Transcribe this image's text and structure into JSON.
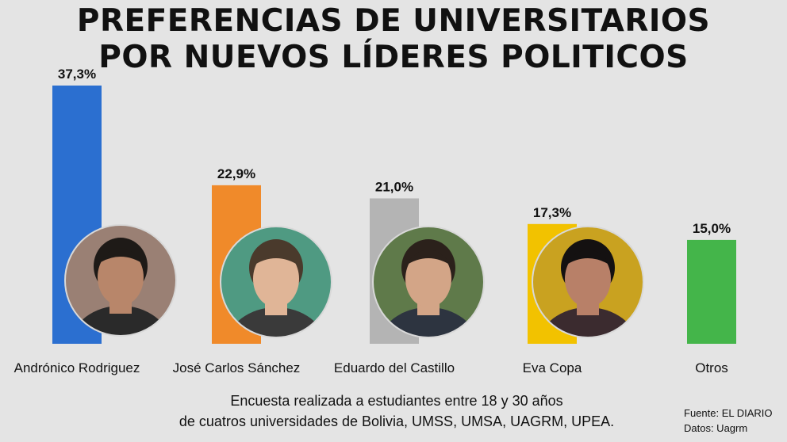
{
  "title": {
    "line1": "PREFERENCIAS DE UNIVERSITARIOS",
    "line2": "POR NUEVOS LÍDERES POLITICOS"
  },
  "chart_data": {
    "type": "bar",
    "categories": [
      "Andrónico Rodriguez",
      "José Carlos Sánchez",
      "Eduardo del Castillo",
      "Eva Copa",
      "Otros"
    ],
    "values": [
      37.3,
      22.9,
      21.0,
      17.3,
      15.0
    ],
    "value_labels": [
      "37,3%",
      "22,9%",
      "21,0%",
      "17,3%",
      "15,0%"
    ],
    "colors": [
      "#2b6fd0",
      "#f08a2a",
      "#b4b4b4",
      "#f2c200",
      "#44b54a"
    ],
    "ylim": [
      0,
      37.3
    ],
    "grid": false,
    "legend": "none",
    "photos": [
      "Andrónico Rodriguez",
      "José Carlos Sánchez",
      "Eduardo del Castillo",
      "Eva Copa"
    ]
  },
  "footnote": {
    "line1": "Encuesta realizada a estudiantes entre 18 y 30 años",
    "line2": "de cuatros universidades de Bolivia, UMSS, UMSA, UAGRM, UPEA."
  },
  "source": {
    "line1": "Fuente: EL DIARIO",
    "line2": "Datos: Uagrm"
  }
}
